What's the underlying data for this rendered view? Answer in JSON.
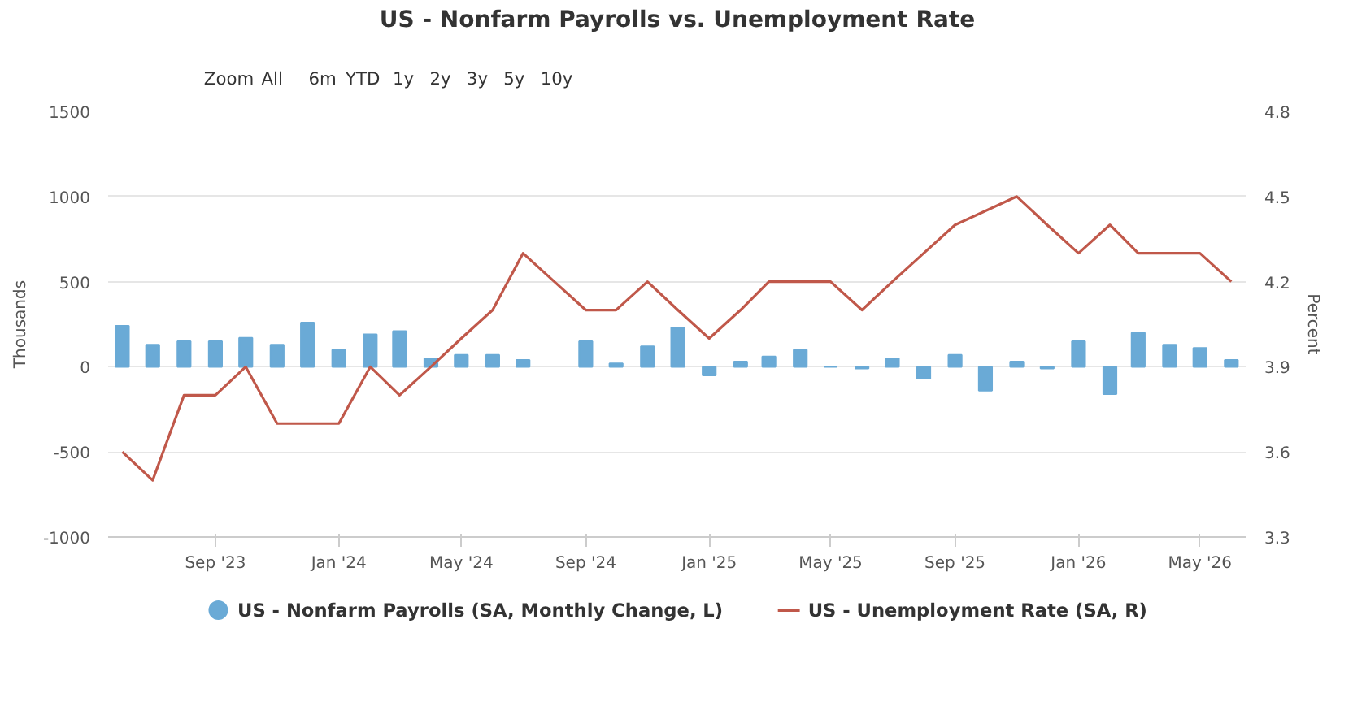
{
  "chart_data": {
    "type": "bar",
    "title": "US - Nonfarm Payrolls vs. Unemployment Rate",
    "annotations": [
      "Zoom",
      "All",
      "6m",
      "YTD",
      "1y",
      "2y",
      "3y",
      "5y",
      "10y"
    ],
    "x": [
      "2023-06",
      "2023-07",
      "2023-08",
      "2023-09",
      "2023-10",
      "2023-11",
      "2023-12",
      "2024-01",
      "2024-02",
      "2024-03",
      "2024-04",
      "2024-05",
      "2024-06",
      "2024-07",
      "2024-08",
      "2024-09",
      "2024-10",
      "2024-11",
      "2024-12",
      "2025-01",
      "2025-02",
      "2025-03",
      "2025-04",
      "2025-05",
      "2025-06",
      "2025-07",
      "2025-08",
      "2025-09",
      "2025-10",
      "2025-11",
      "2025-12",
      "2026-01",
      "2026-02",
      "2026-03",
      "2026-04",
      "2026-05",
      "2026-06"
    ],
    "series": [
      {
        "name": "US - Nonfarm Payrolls (SA, Monthly Change, L)",
        "color": "#6aaad6",
        "values": [
          240,
          130,
          150,
          150,
          170,
          130,
          260,
          100,
          190,
          210,
          50,
          70,
          70,
          40,
          null,
          150,
          20,
          120,
          230,
          -50,
          30,
          60,
          100,
          0,
          -10,
          50,
          -70,
          70,
          -140,
          30,
          -10,
          150,
          -160,
          200,
          130,
          110,
          40
        ]
      },
      {
        "name": "US - Unemployment Rate (SA, R)",
        "type": "line",
        "axis": "y2",
        "color": "#c0584a",
        "x": [
          "2023-06",
          "2023-07",
          "2023-08",
          "2023-09",
          "2023-10",
          "2023-11",
          "2023-12",
          "2024-01",
          "2024-02",
          "2024-03",
          "2024-04",
          "2024-05",
          "2024-06",
          "2024-07",
          "2024-08",
          "2024-09",
          "2024-10",
          "2024-11",
          "2024-12",
          "2025-01",
          "2025-02",
          "2025-03",
          "2025-04",
          "2025-05",
          "2025-06",
          "2025-07",
          "2025-08",
          "2025-09",
          "2025-11",
          "2025-12",
          "2026-01",
          "2026-02",
          "2026-03",
          "2026-04",
          "2026-05",
          "2026-06"
        ],
        "values": [
          3.6,
          3.5,
          3.8,
          3.8,
          3.9,
          3.7,
          3.7,
          3.7,
          3.9,
          3.8,
          3.9,
          4.0,
          4.1,
          4.3,
          4.2,
          4.1,
          4.1,
          4.2,
          4.1,
          4.0,
          4.1,
          4.2,
          4.2,
          4.2,
          4.1,
          4.2,
          4.3,
          4.4,
          4.5,
          4.4,
          4.3,
          4.4,
          4.3,
          4.3,
          4.3,
          4.2
        ]
      }
    ],
    "xlim": [
      "2023-05-18",
      "2026-06-16"
    ],
    "xticks": [
      {
        "value": "2023-09",
        "label": "Sep '23"
      },
      {
        "value": "2024-01",
        "label": "Jan '24"
      },
      {
        "value": "2024-05",
        "label": "May '24"
      },
      {
        "value": "2024-09",
        "label": "Sep '24"
      },
      {
        "value": "2025-01",
        "label": "Jan '25"
      },
      {
        "value": "2025-05",
        "label": "May '25"
      },
      {
        "value": "2025-09",
        "label": "Sep '25"
      },
      {
        "value": "2026-01",
        "label": "Jan '26"
      },
      {
        "value": "2026-05",
        "label": "May '26"
      }
    ],
    "ylim": [
      -1000,
      1500
    ],
    "yticks": [
      -1000,
      -500,
      0,
      500,
      1000,
      1500
    ],
    "y2lim": [
      3.3,
      4.8
    ],
    "y2ticks": [
      3.3,
      3.6,
      3.9,
      4.2,
      4.5,
      4.8
    ],
    "ylabel": "Thousands",
    "y2label": "Percent",
    "grid": "y",
    "legend": "bottom",
    "marker": "none",
    "line_style": "solid"
  }
}
